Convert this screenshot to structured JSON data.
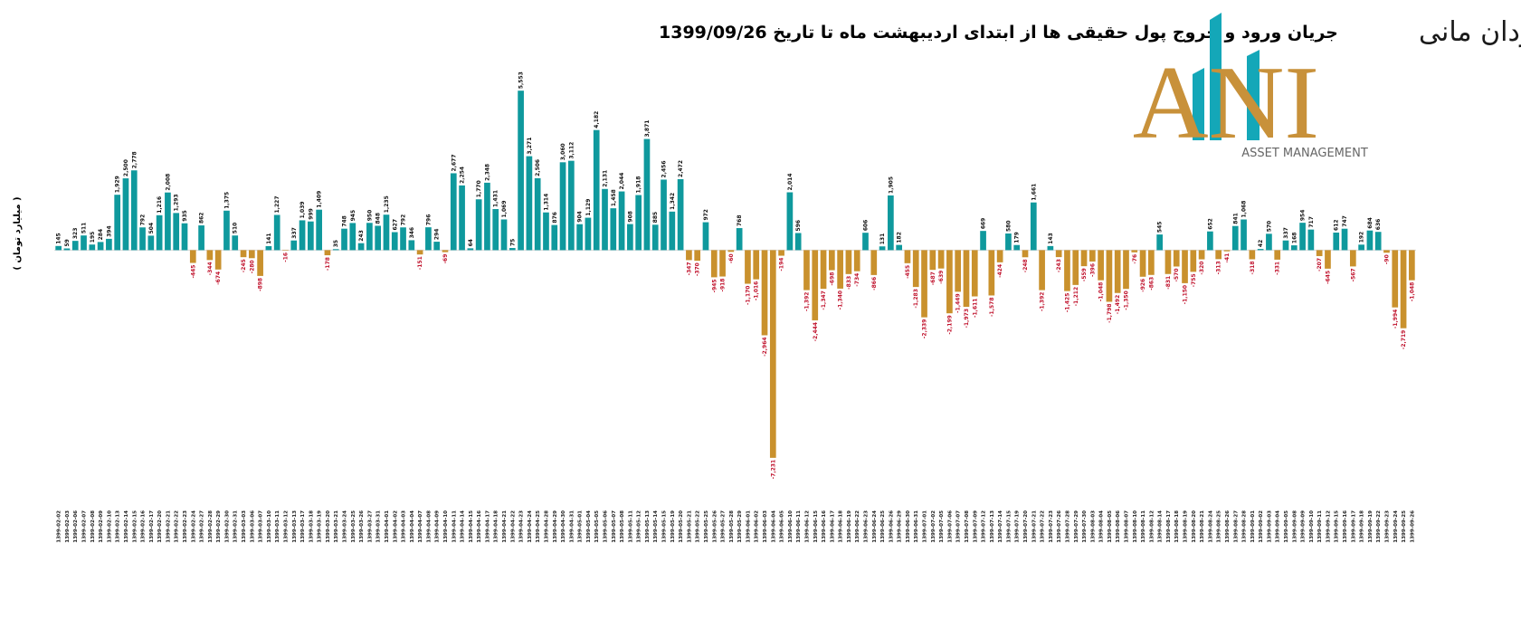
{
  "chart_data": {
    "type": "bar",
    "title": "جریان ورود و خروج پول حقیقی ها از ابتدای اردیبهشت ماه تا تاریخ 1399/09/26",
    "ylabel": "( میلیارد تومان )",
    "colors": {
      "positive": "#0f999d",
      "negative": "#c9912d",
      "positive_label": "#111111",
      "negative_label": "#c0122c"
    },
    "ylim": [
      -9000,
      6000
    ],
    "categories": [
      "1399-02-02",
      "1399-02-03",
      "1399-02-06",
      "1399-02-07",
      "1399-02-08",
      "1399-02-09",
      "1399-02-10",
      "1399-02-13",
      "1399-02-14",
      "1399-02-15",
      "1399-02-16",
      "1399-02-17",
      "1399-02-20",
      "1399-02-21",
      "1399-02-22",
      "1399-02-23",
      "1399-02-24",
      "1399-02-27",
      "1399-02-28",
      "1399-02-29",
      "1399-02-30",
      "1399-02-31",
      "1399-03-03",
      "1399-03-06",
      "1399-03-07",
      "1399-03-10",
      "1399-03-11",
      "1399-03-12",
      "1399-03-13",
      "1399-03-17",
      "1399-03-18",
      "1399-03-19",
      "1399-03-20",
      "1399-03-21",
      "1399-03-24",
      "1399-03-25",
      "1399-03-26",
      "1399-03-27",
      "1399-03-31",
      "1399-04-01",
      "1399-04-02",
      "1399-04-03",
      "1399-04-04",
      "1399-04-07",
      "1399-04-08",
      "1399-04-09",
      "1399-04-10",
      "1399-04-11",
      "1399-04-14",
      "1399-04-15",
      "1399-04-16",
      "1399-04-17",
      "1399-04-18",
      "1399-04-21",
      "1399-04-22",
      "1399-04-23",
      "1399-04-24",
      "1399-04-25",
      "1399-04-28",
      "1399-04-29",
      "1399-04-30",
      "1399-04-31",
      "1399-05-01",
      "1399-05-04",
      "1399-05-05",
      "1399-05-06",
      "1399-05-07",
      "1399-05-08",
      "1399-05-11",
      "1399-05-12",
      "1399-05-13",
      "1399-05-14",
      "1399-05-15",
      "1399-05-19",
      "1399-05-20",
      "1399-05-21",
      "1399-05-22",
      "1399-05-25",
      "1399-05-26",
      "1399-05-27",
      "1399-05-28",
      "1399-05-29",
      "1399-06-01",
      "1399-06-02",
      "1399-06-03",
      "1399-06-04",
      "1399-06-05",
      "1399-06-10",
      "1399-06-11",
      "1399-06-12",
      "1399-06-15",
      "1399-06-16",
      "1399-06-17",
      "1399-06-18",
      "1399-06-19",
      "1399-06-22",
      "1399-06-23",
      "1399-06-24",
      "1399-06-25",
      "1399-06-26",
      "1399-06-29",
      "1399-06-30",
      "1399-06-31",
      "1399-07-01",
      "1399-07-02",
      "1399-07-05",
      "1399-07-06",
      "1399-07-07",
      "1399-07-08",
      "1399-07-09",
      "1399-07-12",
      "1399-07-13",
      "1399-07-14",
      "1399-07-15",
      "1399-07-19",
      "1399-07-20",
      "1399-07-21",
      "1399-07-22",
      "1399-07-23",
      "1399-07-26",
      "1399-07-28",
      "1399-07-29",
      "1399-07-30",
      "1399-08-03",
      "1399-08-04",
      "1399-08-05",
      "1399-08-06",
      "1399-08-07",
      "1399-08-10",
      "1399-08-11",
      "1399-08-12",
      "1399-08-14",
      "1399-08-17",
      "1399-08-18",
      "1399-08-19",
      "1399-08-20",
      "1399-08-21",
      "1399-08-24",
      "1399-08-25",
      "1399-08-26",
      "1399-08-27",
      "1399-08-28",
      "1399-09-01",
      "1399-09-02",
      "1399-09-03",
      "1399-09-04",
      "1399-09-05",
      "1399-09-08",
      "1399-09-09",
      "1399-09-10",
      "1399-09-11",
      "1399-09-12",
      "1399-09-15",
      "1399-09-16",
      "1399-09-17",
      "1399-09-18",
      "1399-09-19",
      "1399-09-22",
      "1399-09-23",
      "1399-09-24",
      "1399-09-25",
      "1399-09-26"
    ],
    "values": [
      145,
      59,
      323,
      511,
      195,
      284,
      394,
      1929,
      2500,
      2778,
      792,
      504,
      1216,
      2008,
      1293,
      935,
      -445,
      862,
      -344,
      -674,
      1375,
      510,
      -245,
      -280,
      -898,
      141,
      1227,
      -16,
      337,
      1039,
      999,
      1409,
      -178,
      35,
      748,
      945,
      243,
      950,
      848,
      1235,
      627,
      792,
      346,
      -151,
      796,
      294,
      -69,
      2677,
      2254,
      64,
      1770,
      2348,
      1431,
      1069,
      75,
      5553,
      3271,
      2506,
      1314,
      876,
      3060,
      3112,
      904,
      1129,
      4182,
      2131,
      1458,
      2044,
      908,
      1918,
      3871,
      885,
      2456,
      1342,
      2472,
      -347,
      -370,
      972,
      -945,
      -918,
      -60,
      768,
      -1170,
      -1016,
      -2964,
      -7231,
      -194,
      2014,
      596,
      -1392,
      -2444,
      -1347,
      -698,
      -1340,
      -833,
      -734,
      606,
      -866,
      131,
      1905,
      182,
      -455,
      -1283,
      -2339,
      -687,
      -639,
      -2199,
      -1449,
      -1973,
      -1611,
      669,
      -1578,
      -424,
      580,
      179,
      -248,
      1661,
      -1392,
      143,
      -243,
      -1425,
      -1212,
      -559,
      -396,
      -1048,
      -1798,
      -1492,
      -1350,
      -76,
      -926,
      -863,
      545,
      -831,
      -570,
      -1150,
      -755,
      -320,
      652,
      -313,
      -41,
      841,
      1068,
      -318,
      42,
      570,
      -331,
      337,
      168,
      954,
      717,
      -207,
      -645,
      612,
      747,
      -567,
      192,
      684,
      636,
      -90,
      -1994,
      -2719,
      -1048
    ],
    "value_labels": [
      "145",
      "59",
      "323",
      "511",
      "195",
      "284",
      "394",
      "1,929",
      "2,500",
      "2,778",
      "792",
      "504",
      "1,216",
      "2,008",
      "1,293",
      "935",
      "-445",
      "862",
      "-344",
      "-674",
      "1,375",
      "510",
      "-245",
      "-280",
      "-898",
      "141",
      "1,227",
      "-16",
      "337",
      "1,039",
      "999",
      "1,409",
      "-178",
      "35",
      "748",
      "945",
      "243",
      "950",
      "848",
      "1,235",
      "627",
      "792",
      "346",
      "-151",
      "796",
      "294",
      "-69",
      "2,677",
      "2,254",
      "64",
      "1,770",
      "2,348",
      "1,431",
      "1,069",
      "75",
      "5,553",
      "3,271",
      "2,506",
      "1,314",
      "876",
      "3,060",
      "3,112",
      "904",
      "1,129",
      "4,182",
      "2,131",
      "1,458",
      "2,044",
      "908",
      "1,918",
      "3,871",
      "885",
      "2,456",
      "1,342",
      "2,472",
      "-347",
      "-370",
      "972",
      "-945",
      "-918",
      "-60",
      "768",
      "-1,170",
      "-1,016",
      "-2,964",
      "-7,231",
      "-194",
      "2,014",
      "596",
      "-1,392",
      "-2,444",
      "-1,347",
      "-698",
      "-1,340",
      "-833",
      "-734",
      "606",
      "-866",
      "131",
      "1,905",
      "182",
      "-455",
      "-1,283",
      "-2,339",
      "-687",
      "-639",
      "-2,199",
      "-1,449",
      "-1,973",
      "-1,611",
      "669",
      "-1,578",
      "-424",
      "580",
      "179",
      "-248",
      "1,661",
      "-1,392",
      "143",
      "-243",
      "-1,425",
      "-1,212",
      "-559",
      "-396",
      "-1,048",
      "-1,798",
      "-1,492",
      "-1,350",
      "-76",
      "-926",
      "-863",
      "545",
      "-831",
      "-570",
      "-1,150",
      "-755",
      "-320",
      "652",
      "-313",
      "-41",
      "841",
      "1,068",
      "-318",
      "42",
      "570",
      "-331",
      "337",
      "168",
      "954",
      "717",
      "-207",
      "-645",
      "612",
      "747",
      "-567",
      "192",
      "684",
      "636",
      "-90",
      "-1,994",
      "-2,719",
      "-1,048"
    ]
  },
  "logo": {
    "name": "سبد گردان مانی",
    "mark": "ANI",
    "tagline": "ASSET MANAGEMENT"
  }
}
